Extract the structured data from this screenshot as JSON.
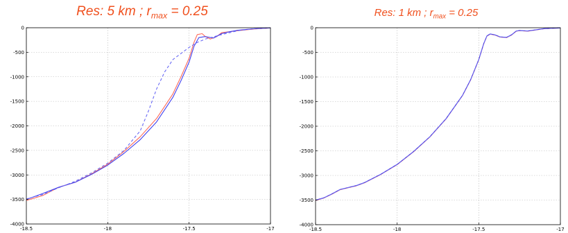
{
  "chart_data": [
    {
      "type": "line",
      "title": {
        "prefix": "Res: 5 km ; r",
        "sub": "max",
        "suffix": " = 0.25"
      },
      "xlim": [
        -18.5,
        -17
      ],
      "ylim": [
        -4000,
        0
      ],
      "xticks": [
        -18.5,
        -18,
        -17.5,
        -17
      ],
      "xtick_labels": [
        "-18.5",
        "-18",
        "-17.5",
        "-17"
      ],
      "yticks": [
        0,
        -500,
        -1000,
        -1500,
        -2000,
        -2500,
        -3000,
        -3500,
        -4000
      ],
      "ytick_labels": [
        "0",
        "-500",
        "-1000",
        "-1500",
        "-2000",
        "-2500",
        "-3000",
        "-3500",
        "-4000"
      ],
      "grid": true,
      "series": [
        {
          "color": "#ff6a5a",
          "style": "solid",
          "x": [
            -18.5,
            -18.4,
            -18.3,
            -18.2,
            -18.1,
            -18.0,
            -17.9,
            -17.8,
            -17.7,
            -17.6,
            -17.55,
            -17.5,
            -17.47,
            -17.45,
            -17.42,
            -17.4,
            -17.37,
            -17.33,
            -17.3,
            -17.25,
            -17.2,
            -17.1,
            -17.0
          ],
          "y": [
            -3520,
            -3420,
            -3250,
            -3150,
            -2980,
            -2780,
            -2520,
            -2220,
            -1850,
            -1350,
            -1000,
            -620,
            -300,
            -140,
            -120,
            -180,
            -230,
            -180,
            -100,
            -80,
            -60,
            -25,
            -5
          ]
        },
        {
          "color": "#4040ee",
          "style": "solid",
          "x": [
            -18.5,
            -18.4,
            -18.3,
            -18.2,
            -18.1,
            -18.0,
            -17.9,
            -17.8,
            -17.7,
            -17.6,
            -17.55,
            -17.5,
            -17.47,
            -17.44,
            -17.4,
            -17.35,
            -17.3,
            -17.25,
            -17.2,
            -17.1,
            -17.0
          ],
          "y": [
            -3500,
            -3380,
            -3250,
            -3150,
            -2990,
            -2800,
            -2560,
            -2280,
            -1920,
            -1420,
            -1080,
            -700,
            -380,
            -200,
            -180,
            -210,
            -120,
            -80,
            -50,
            -20,
            -5
          ]
        },
        {
          "color": "#6a6af5",
          "style": "dashed",
          "x": [
            -18.5,
            -18.4,
            -18.3,
            -18.2,
            -18.1,
            -18.0,
            -17.9,
            -17.8,
            -17.75,
            -17.7,
            -17.65,
            -17.6,
            -17.5,
            -17.45,
            -17.4,
            -17.3,
            -17.2,
            -17.1,
            -17.0
          ],
          "y": [
            -3490,
            -3400,
            -3260,
            -3130,
            -2960,
            -2760,
            -2500,
            -2100,
            -1700,
            -1250,
            -900,
            -650,
            -400,
            -300,
            -230,
            -140,
            -60,
            -20,
            -5
          ]
        }
      ]
    },
    {
      "type": "line",
      "title": {
        "prefix": "Res: 1 km ;  r",
        "sub": "max",
        "suffix": " = 0.25"
      },
      "xlim": [
        -18.5,
        -17
      ],
      "ylim": [
        -4000,
        0
      ],
      "xticks": [
        -18.5,
        -18,
        -17.5,
        -17
      ],
      "xtick_labels": [
        "-18.5",
        "-18",
        "-17.5",
        "-17"
      ],
      "yticks": [
        0,
        -500,
        -1000,
        -1500,
        -2000,
        -2500,
        -3000,
        -3500,
        -4000
      ],
      "ytick_labels": [
        "0",
        "-500",
        "-1000",
        "-1500",
        "-2000",
        "-2500",
        "-3000",
        "-3500",
        "-4000"
      ],
      "grid": true,
      "series": [
        {
          "color": "#ff6a5a",
          "style": "solid",
          "x": [
            -18.5,
            -18.45,
            -18.4,
            -18.35,
            -18.3,
            -18.25,
            -18.2,
            -18.1,
            -18.0,
            -17.9,
            -17.8,
            -17.7,
            -17.6,
            -17.55,
            -17.5,
            -17.47,
            -17.45,
            -17.43,
            -17.4,
            -17.37,
            -17.33,
            -17.3,
            -17.27,
            -17.25,
            -17.2,
            -17.1,
            -17.0
          ],
          "y": [
            -3510,
            -3460,
            -3380,
            -3290,
            -3250,
            -3210,
            -3150,
            -2980,
            -2780,
            -2520,
            -2220,
            -1850,
            -1380,
            -1060,
            -650,
            -330,
            -170,
            -130,
            -150,
            -190,
            -200,
            -150,
            -70,
            -60,
            -70,
            -20,
            -5
          ]
        },
        {
          "color": "#4040ee",
          "style": "solid",
          "x": [
            -18.5,
            -18.45,
            -18.4,
            -18.35,
            -18.3,
            -18.25,
            -18.2,
            -18.1,
            -18.0,
            -17.9,
            -17.8,
            -17.7,
            -17.6,
            -17.55,
            -17.5,
            -17.47,
            -17.45,
            -17.43,
            -17.4,
            -17.37,
            -17.33,
            -17.3,
            -17.27,
            -17.25,
            -17.2,
            -17.1,
            -17.0
          ],
          "y": [
            -3500,
            -3455,
            -3375,
            -3285,
            -3245,
            -3205,
            -3145,
            -2975,
            -2775,
            -2515,
            -2215,
            -1845,
            -1375,
            -1055,
            -645,
            -325,
            -165,
            -125,
            -145,
            -185,
            -195,
            -145,
            -65,
            -55,
            -65,
            -18,
            -4
          ]
        },
        {
          "color": "#6a6af5",
          "style": "dashed",
          "x": [
            -18.5,
            -18.45,
            -18.4,
            -18.35,
            -18.3,
            -18.25,
            -18.2,
            -18.1,
            -18.0,
            -17.9,
            -17.8,
            -17.7,
            -17.6,
            -17.55,
            -17.5,
            -17.47,
            -17.45,
            -17.43,
            -17.4,
            -17.37,
            -17.33,
            -17.3,
            -17.27,
            -17.25,
            -17.2,
            -17.1,
            -17.0
          ],
          "y": [
            -3505,
            -3458,
            -3378,
            -3288,
            -3248,
            -3208,
            -3148,
            -2978,
            -2778,
            -2518,
            -2218,
            -1848,
            -1378,
            -1058,
            -648,
            -328,
            -168,
            -128,
            -148,
            -188,
            -198,
            -148,
            -68,
            -58,
            -68,
            -19,
            -5
          ]
        }
      ]
    }
  ]
}
